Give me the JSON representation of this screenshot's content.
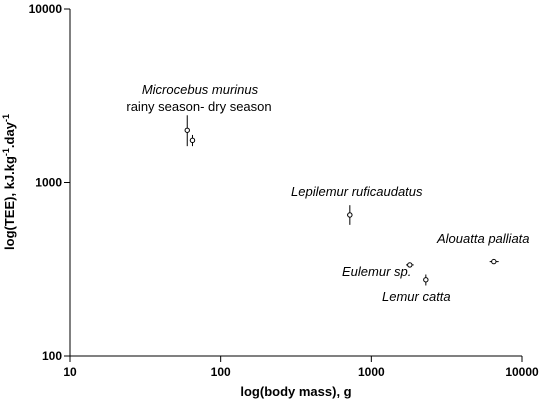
{
  "chart_data": {
    "type": "scatter",
    "title": "",
    "xlabel": "log(body mass), g",
    "ylabel_parts": {
      "base": "log(TEE), kJ.kg",
      "sup1": "-1",
      "mid": ".day",
      "sup2": "-1"
    },
    "xscale": "log",
    "yscale": "log",
    "xlim": [
      10,
      10000
    ],
    "ylim": [
      100,
      10000
    ],
    "x_ticks": [
      {
        "value": 10,
        "label": "10"
      },
      {
        "value": 100,
        "label": "100"
      },
      {
        "value": 1000,
        "label": "1000"
      },
      {
        "value": 10000,
        "label": "10000"
      }
    ],
    "y_ticks": [
      {
        "value": 100,
        "label": "100"
      },
      {
        "value": 1000,
        "label": "1000"
      },
      {
        "value": 10000,
        "label": "10000"
      }
    ],
    "grid": false,
    "points": [
      {
        "x": 60,
        "y": 2000,
        "y_low": 1620,
        "y_high": 2440,
        "x_low": 60,
        "x_high": 60
      },
      {
        "x": 65,
        "y": 1750,
        "y_low": 1620,
        "y_high": 1880,
        "x_low": 62.5,
        "x_high": 67.5
      },
      {
        "x": 720,
        "y": 650,
        "y_low": 570,
        "y_high": 740,
        "x_low": 690,
        "x_high": 750
      },
      {
        "x": 1800,
        "y": 335,
        "y_low": 335,
        "y_high": 335,
        "x_low": 1700,
        "x_high": 1910
      },
      {
        "x": 2300,
        "y": 275,
        "y_low": 255,
        "y_high": 295,
        "x_low": 2300,
        "x_high": 2300
      },
      {
        "x": 6500,
        "y": 350,
        "y_low": 350,
        "y_high": 350,
        "x_low": 6100,
        "x_high": 7000
      }
    ],
    "annotations": [
      {
        "name": "microcebus-murinus",
        "text": "Microcebus murinus",
        "italic": true
      },
      {
        "name": "rainy-dry-season",
        "text": "rainy season- dry season",
        "italic": false
      },
      {
        "name": "lepilemur-ruficaudatus",
        "text": "Lepilemur ruficaudatus",
        "italic": true
      },
      {
        "name": "alouatta-palliata",
        "text": "Alouatta palliata",
        "italic": true
      },
      {
        "name": "eulemur-sp",
        "text": "Eulemur sp.",
        "italic": true
      },
      {
        "name": "lemur-catta",
        "text": "Lemur catta",
        "italic": true
      }
    ]
  }
}
